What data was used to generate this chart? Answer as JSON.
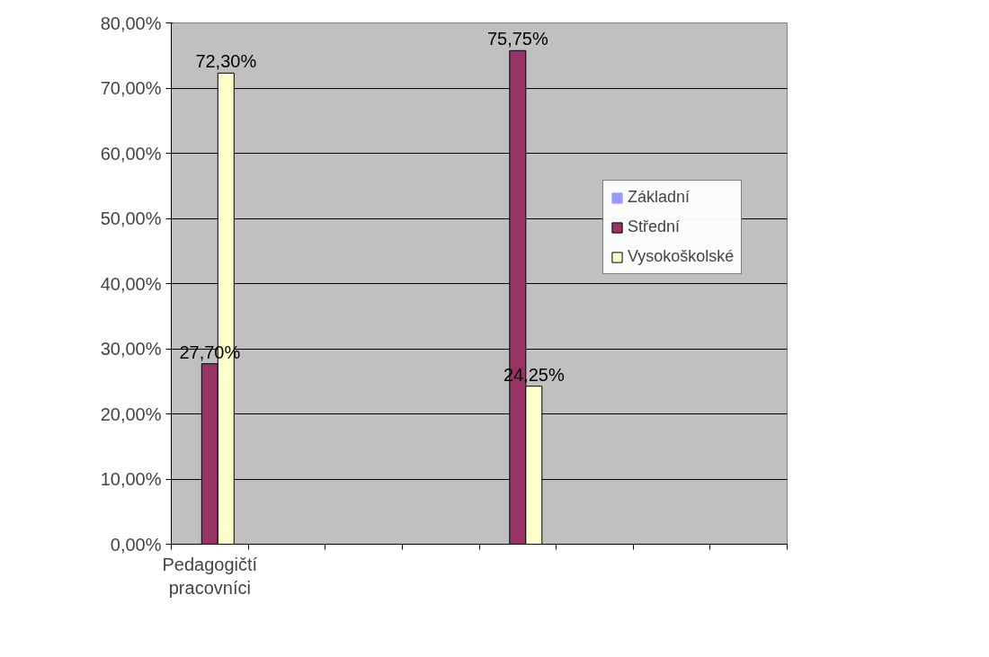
{
  "chart_data": {
    "type": "bar",
    "categories": [
      "Pedagogičtí pracovníci",
      null,
      null,
      null,
      null,
      null,
      null,
      null
    ],
    "series": [
      {
        "name": "Základní",
        "color": "#9999ff",
        "values": [
          0,
          null,
          null,
          null,
          0,
          null,
          null,
          null
        ]
      },
      {
        "name": "Střední",
        "color": "#993366",
        "values": [
          27.7,
          null,
          null,
          null,
          75.75,
          null,
          null,
          null
        ],
        "value_labels": [
          "27,70%",
          null,
          null,
          null,
          "75,75%",
          null,
          null,
          null
        ]
      },
      {
        "name": "Vysokoškolské",
        "color": "#ffffcc",
        "values": [
          72.3,
          null,
          null,
          null,
          24.25,
          null,
          null,
          null
        ],
        "value_labels": [
          "72,30%",
          null,
          null,
          null,
          "24,25%",
          null,
          null,
          null
        ]
      }
    ],
    "ylim": [
      0,
      80
    ],
    "yticks": [
      {
        "value": 0,
        "label": "0,00%"
      },
      {
        "value": 10,
        "label": "10,00%"
      },
      {
        "value": 20,
        "label": "20,00%"
      },
      {
        "value": 30,
        "label": "30,00%"
      },
      {
        "value": 40,
        "label": "40,00%"
      },
      {
        "value": 50,
        "label": "50,00%"
      },
      {
        "value": 60,
        "label": "60,00%"
      },
      {
        "value": 70,
        "label": "70,00%"
      },
      {
        "value": 80,
        "label": "80,00%"
      }
    ],
    "grid": "y",
    "legend": "right"
  }
}
